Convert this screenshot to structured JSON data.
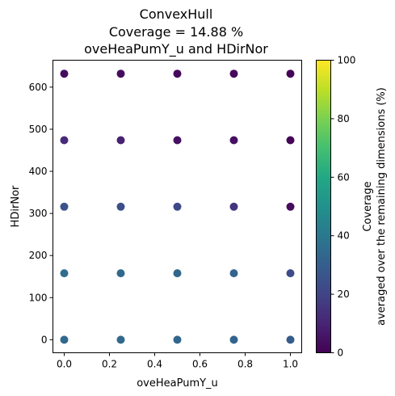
{
  "chart_data": {
    "type": "scatter",
    "title": [
      "ConvexHull",
      "Coverage = 14.88 %",
      "oveHeaPumY_u and HDirNor"
    ],
    "xlabel": "oveHeaPumY_u",
    "ylabel": "HDirNor",
    "xlim": [
      -0.05,
      1.05
    ],
    "ylim": [
      -31,
      664
    ],
    "xticks": [
      0.0,
      0.2,
      0.4,
      0.6,
      0.8,
      1.0
    ],
    "xtick_labels": [
      "0.0",
      "0.2",
      "0.4",
      "0.6",
      "0.8",
      "1.0"
    ],
    "yticks": [
      0,
      100,
      200,
      300,
      400,
      500,
      600
    ],
    "ytick_labels": [
      "0",
      "100",
      "200",
      "300",
      "400",
      "500",
      "600"
    ],
    "grid": false,
    "colormap": "viridis",
    "colorbar": {
      "label": [
        "Coverage",
        "averaged over the remaining dimensions (%)"
      ],
      "range": [
        0,
        100
      ],
      "ticks": [
        0,
        20,
        40,
        60,
        80,
        100
      ],
      "tick_labels": [
        "0",
        "20",
        "40",
        "60",
        "80",
        "100"
      ]
    },
    "points": [
      {
        "x": 0.0,
        "y": 0,
        "c": 34
      },
      {
        "x": 0.25,
        "y": 0,
        "c": 34
      },
      {
        "x": 0.5,
        "y": 0,
        "c": 33
      },
      {
        "x": 0.75,
        "y": 0,
        "c": 32
      },
      {
        "x": 1.0,
        "y": 0,
        "c": 29
      },
      {
        "x": 0.0,
        "y": 158,
        "c": 35
      },
      {
        "x": 0.25,
        "y": 158,
        "c": 34
      },
      {
        "x": 0.5,
        "y": 158,
        "c": 33
      },
      {
        "x": 0.75,
        "y": 158,
        "c": 32
      },
      {
        "x": 1.0,
        "y": 158,
        "c": 23
      },
      {
        "x": 0.0,
        "y": 316,
        "c": 25
      },
      {
        "x": 0.25,
        "y": 316,
        "c": 24
      },
      {
        "x": 0.5,
        "y": 316,
        "c": 22
      },
      {
        "x": 0.75,
        "y": 316,
        "c": 15
      },
      {
        "x": 1.0,
        "y": 316,
        "c": 3
      },
      {
        "x": 0.0,
        "y": 474,
        "c": 12
      },
      {
        "x": 0.25,
        "y": 474,
        "c": 9
      },
      {
        "x": 0.5,
        "y": 474,
        "c": 4
      },
      {
        "x": 0.75,
        "y": 474,
        "c": 4
      },
      {
        "x": 1.0,
        "y": 474,
        "c": 1
      },
      {
        "x": 0.0,
        "y": 632,
        "c": 3
      },
      {
        "x": 0.25,
        "y": 632,
        "c": 3
      },
      {
        "x": 0.5,
        "y": 632,
        "c": 2
      },
      {
        "x": 0.75,
        "y": 632,
        "c": 2
      },
      {
        "x": 1.0,
        "y": 632,
        "c": 1
      }
    ]
  }
}
